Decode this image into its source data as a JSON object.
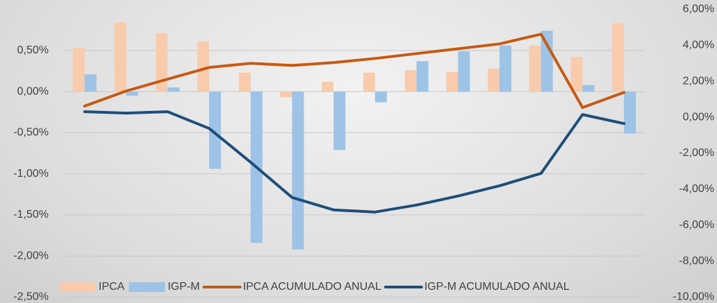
{
  "chart_data": {
    "type": "bar",
    "categories": [
      null,
      null,
      null,
      null,
      null,
      null,
      null,
      null,
      null,
      null,
      null,
      null,
      null,
      null
    ],
    "series": [
      {
        "name": "IPCA",
        "type": "bar",
        "color": "#f8cbad",
        "values": [
          0.53,
          0.84,
          0.71,
          0.61,
          0.23,
          -0.07,
          0.12,
          0.23,
          0.26,
          0.24,
          0.28,
          0.56,
          0.42,
          0.83
        ]
      },
      {
        "name": "IGP-M",
        "type": "bar",
        "color": "#9dc3e6",
        "values": [
          0.21,
          -0.05,
          0.05,
          -0.94,
          -1.84,
          -1.92,
          -0.71,
          -0.13,
          0.37,
          0.49,
          0.56,
          0.74,
          0.08,
          -0.51
        ]
      },
      {
        "name": "IPCA ACUMULADO ANUAL",
        "type": "line",
        "axis": "y2",
        "color": "#c55a11",
        "values": [
          0.62,
          1.46,
          2.12,
          2.77,
          3.0,
          2.88,
          3.04,
          3.27,
          3.54,
          3.81,
          4.08,
          4.62,
          0.54,
          1.38
        ]
      },
      {
        "name": "IGP-M ACUMULADO ANUAL",
        "type": "line",
        "axis": "y2",
        "color": "#1f4e79",
        "values": [
          0.31,
          0.23,
          0.31,
          -0.62,
          -2.5,
          -4.46,
          -5.15,
          -5.27,
          -4.88,
          -4.38,
          -3.81,
          -3.12,
          0.15,
          -0.35
        ]
      }
    ],
    "ylim": [
      -2.5,
      1.0
    ],
    "yticks": [
      {
        "value": -2.5,
        "label": "-2,50%"
      },
      {
        "value": -2.0,
        "label": "-2,00%"
      },
      {
        "value": -1.5,
        "label": "-1,50%"
      },
      {
        "value": -1.0,
        "label": "-1,00%"
      },
      {
        "value": -0.5,
        "label": "-0,50%"
      },
      {
        "value": 0,
        "label": "0,00%"
      },
      {
        "value": 0.5,
        "label": "0,50%"
      }
    ],
    "y2lim": [
      -10,
      6
    ],
    "y2ticks": [
      {
        "value": -10,
        "label": "-10,00%"
      },
      {
        "value": -8,
        "label": "-8,00%"
      },
      {
        "value": -6,
        "label": "-6,00%"
      },
      {
        "value": -4,
        "label": "-4,00%"
      },
      {
        "value": -2,
        "label": "-2,00%"
      },
      {
        "value": 0,
        "label": "0,00%"
      },
      {
        "value": 2,
        "label": "2,00%"
      },
      {
        "value": 4,
        "label": "4,00%"
      },
      {
        "value": 6,
        "label": "6,00%"
      }
    ],
    "grid": true,
    "legend": "bottom"
  }
}
